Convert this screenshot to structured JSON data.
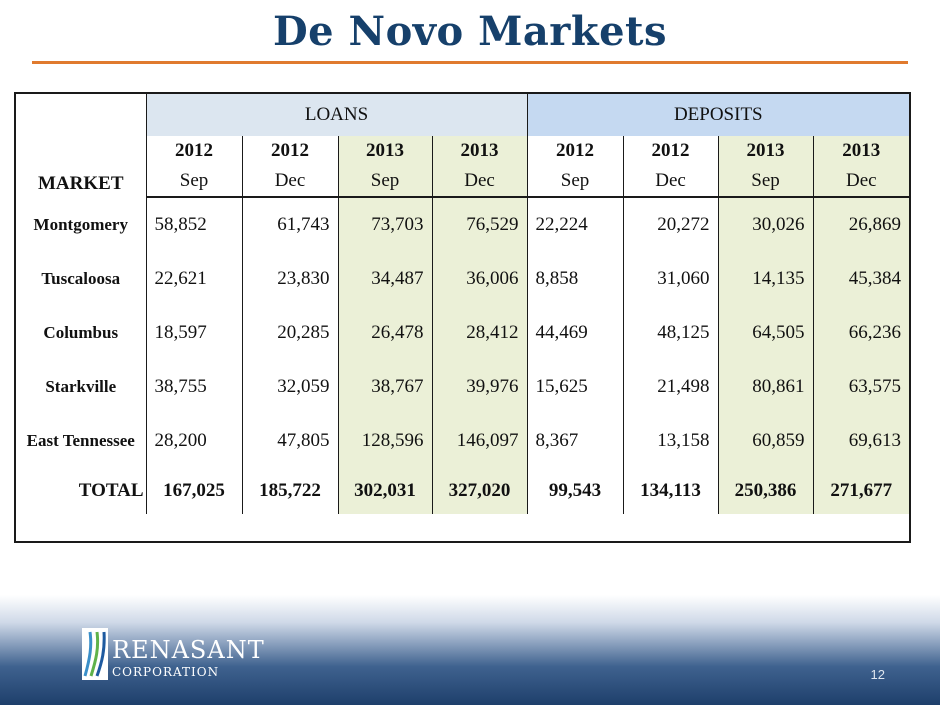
{
  "title": "De Novo Markets",
  "table": {
    "market_header": "MARKET",
    "groups": {
      "loans": "LOANS",
      "deposits": "DEPOSITS"
    },
    "columns": [
      {
        "year": "2012",
        "period": "Sep"
      },
      {
        "year": "2012",
        "period": "Dec"
      },
      {
        "year": "2013",
        "period": "Sep"
      },
      {
        "year": "2013",
        "period": "Dec"
      },
      {
        "year": "2012",
        "period": "Sep"
      },
      {
        "year": "2012",
        "period": "Dec"
      },
      {
        "year": "2013",
        "period": "Sep"
      },
      {
        "year": "2013",
        "period": "Dec"
      }
    ],
    "rows": [
      {
        "market": "Montgomery",
        "values": [
          "58,852",
          "61,743",
          "73,703",
          "76,529",
          "22,224",
          "20,272",
          "30,026",
          "26,869"
        ]
      },
      {
        "market": "Tuscaloosa",
        "values": [
          "22,621",
          "23,830",
          "34,487",
          "36,006",
          "8,858",
          "31,060",
          "14,135",
          "45,384"
        ]
      },
      {
        "market": "Columbus",
        "values": [
          "18,597",
          "20,285",
          "26,478",
          "28,412",
          "44,469",
          "48,125",
          "64,505",
          "66,236"
        ]
      },
      {
        "market": "Starkville",
        "values": [
          "38,755",
          "32,059",
          "38,767",
          "39,976",
          "15,625",
          "21,498",
          "80,861",
          "63,575"
        ]
      },
      {
        "market": "East Tennessee",
        "values": [
          "28,200",
          "47,805",
          "128,596",
          "146,097",
          "8,367",
          "13,158",
          "60,859",
          "69,613"
        ]
      }
    ],
    "total": {
      "label": "TOTAL",
      "values": [
        "167,025",
        "185,722",
        "302,031",
        "327,020",
        "99,543",
        "134,113",
        "250,386",
        "271,677"
      ]
    }
  },
  "logo": {
    "name": "RENASANT",
    "sub": "CORPORATION"
  },
  "page_number": "12",
  "colors": {
    "title": "#16406b",
    "rule": "#e07a2e",
    "highlight": "#ebf0d7",
    "loans_header": "#dce6f0",
    "deposits_header": "#c5d9f1"
  }
}
